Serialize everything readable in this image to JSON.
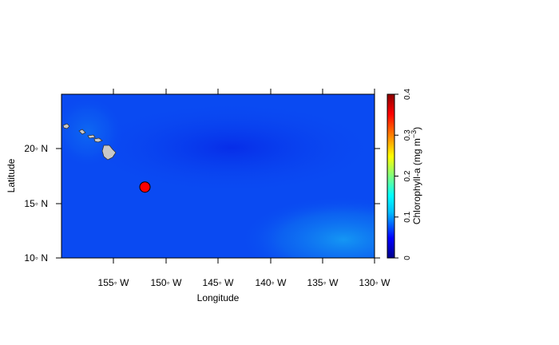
{
  "axes": {
    "x_label": "Longitude",
    "y_label": "Latitude",
    "x_ticks": [
      "155◦ W",
      "150◦ W",
      "145◦ W",
      "140◦ W",
      "135◦ W",
      "130◦ W"
    ],
    "y_ticks": [
      "10◦ N",
      "15◦ N",
      "20◦ N"
    ]
  },
  "colorbar": {
    "title": "Chlorophyll-a (mg m^-3)",
    "title_main": "Chlorophyll-a (mg m",
    "title_sup": "−3",
    "title_close": ")",
    "ticks": [
      "0",
      "0.1",
      "0.2",
      "0.3",
      "0.4"
    ],
    "colors": [
      "#00008b",
      "#0000ff",
      "#00bfff",
      "#00ffff",
      "#7fff7f",
      "#ffff00",
      "#ff7f00",
      "#ff0000",
      "#8b0000"
    ]
  },
  "map": {
    "extent": {
      "lon": [
        -160,
        -130
      ],
      "lat": [
        10,
        25
      ]
    },
    "field_colors": {
      "base": "#0a4af2",
      "dark": "#0628e8",
      "light": "#16a4f4"
    },
    "land_color": "#c8c8c8",
    "marker": {
      "lon": -152.0,
      "lat": 16.5,
      "color": "#ff0000"
    }
  }
}
